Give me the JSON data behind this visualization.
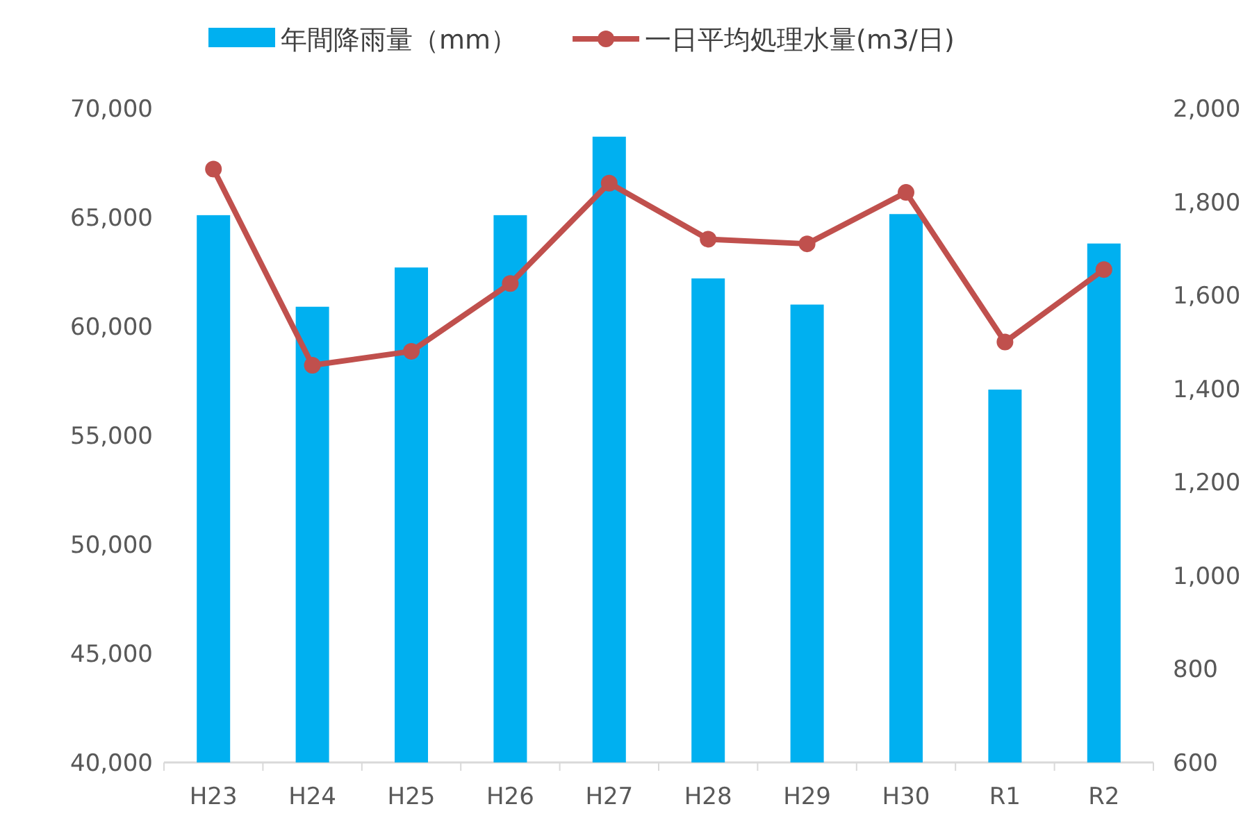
{
  "chart_data": {
    "type": "bar",
    "categories": [
      "H23",
      "H24",
      "H25",
      "H26",
      "H27",
      "H28",
      "H29",
      "H30",
      "R1",
      "R2"
    ],
    "series": [
      {
        "name": "年間降雨量（mm）",
        "color": "#00b0f0",
        "values": [
          65100,
          60900,
          62700,
          65100,
          68700,
          62200,
          61000,
          65150,
          57100,
          63800
        ]
      },
      {
        "name": "一日平均処理水量(m3/日)",
        "type": "line",
        "axis": "y2",
        "color": "#c0504d",
        "marker": "circle",
        "values": [
          1870,
          1450,
          1480,
          1625,
          1840,
          1720,
          1710,
          1820,
          1500,
          1655
        ]
      }
    ],
    "ylim": [
      40000,
      70000
    ],
    "yticks": [
      {
        "value": 40000,
        "label": "40,000"
      },
      {
        "value": 45000,
        "label": "45,000"
      },
      {
        "value": 50000,
        "label": "50,000"
      },
      {
        "value": 55000,
        "label": "55,000"
      },
      {
        "value": 60000,
        "label": "60,000"
      },
      {
        "value": 65000,
        "label": "65,000"
      },
      {
        "value": 70000,
        "label": "70,000"
      }
    ],
    "y2lim": [
      600,
      2000
    ],
    "y2ticks": [
      600,
      800,
      {
        "value": 1000,
        "label": "1,000"
      },
      {
        "value": 1200,
        "label": "1,200"
      },
      {
        "value": 1400,
        "label": "1,400"
      },
      {
        "value": 1600,
        "label": "1,600"
      },
      {
        "value": 1800,
        "label": "1,800"
      },
      {
        "value": 2000,
        "label": "2,000"
      }
    ],
    "grid": false,
    "legend": "top"
  }
}
